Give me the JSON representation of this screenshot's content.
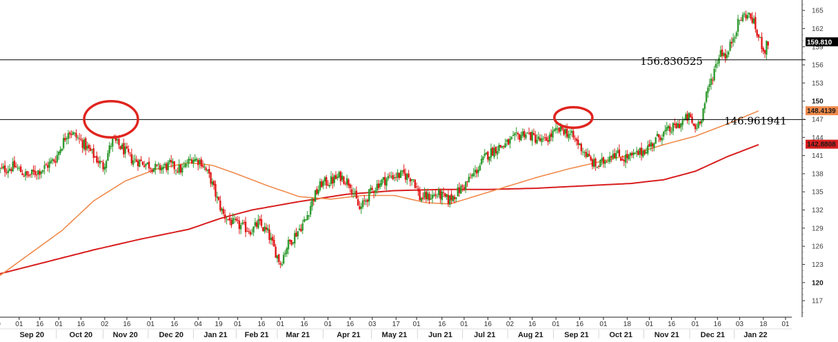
{
  "chart_data": {
    "type": "candlestick",
    "colors": {
      "up": "#2e9a2e",
      "down": "#e01818",
      "ma_short": "#f08a4b",
      "ma_long": "#d81d1d",
      "circle": "#e0241e",
      "hline": "#000000"
    },
    "ylim": [
      114.5,
      166.5
    ],
    "y_ticks": [
      {
        "value": 117,
        "label": "117",
        "bold": false
      },
      {
        "value": 120,
        "label": "120",
        "bold": true
      },
      {
        "value": 123,
        "label": "123",
        "bold": false
      },
      {
        "value": 126,
        "label": "126",
        "bold": false
      },
      {
        "value": 129,
        "label": "129",
        "bold": false
      },
      {
        "value": 132,
        "label": "132",
        "bold": false
      },
      {
        "value": 135,
        "label": "135",
        "bold": false
      },
      {
        "value": 138,
        "label": "138",
        "bold": false
      },
      {
        "value": 141,
        "label": "141",
        "bold": false
      },
      {
        "value": 144,
        "label": "144",
        "bold": false
      },
      {
        "value": 147,
        "label": "147",
        "bold": false
      },
      {
        "value": 150,
        "label": "150",
        "bold": true
      },
      {
        "value": 153,
        "label": "153",
        "bold": false
      },
      {
        "value": 156,
        "label": "156",
        "bold": false
      },
      {
        "value": 159,
        "label": "159",
        "bold": false
      },
      {
        "value": 162,
        "label": "162",
        "bold": false
      },
      {
        "value": 165,
        "label": "165",
        "bold": false
      }
    ],
    "x_domain": [
      0,
      504
    ],
    "date_ticks": [
      {
        "pos": 0,
        "label": "0"
      },
      {
        "pos": 13,
        "label": "01"
      },
      {
        "pos": 26,
        "label": "16"
      },
      {
        "pos": 38,
        "label": "01"
      },
      {
        "pos": 52,
        "label": "16"
      },
      {
        "pos": 67,
        "label": "02"
      },
      {
        "pos": 81,
        "label": "16"
      },
      {
        "pos": 96,
        "label": "01"
      },
      {
        "pos": 111,
        "label": "16"
      },
      {
        "pos": 126,
        "label": "04"
      },
      {
        "pos": 139,
        "label": "19"
      },
      {
        "pos": 151,
        "label": "01"
      },
      {
        "pos": 166,
        "label": "16"
      },
      {
        "pos": 178,
        "label": "01"
      },
      {
        "pos": 193,
        "label": "16"
      },
      {
        "pos": 208,
        "label": "01"
      },
      {
        "pos": 222,
        "label": "16"
      },
      {
        "pos": 236,
        "label": "03"
      },
      {
        "pos": 251,
        "label": "17"
      },
      {
        "pos": 264,
        "label": "01"
      },
      {
        "pos": 280,
        "label": "16"
      },
      {
        "pos": 294,
        "label": "01"
      },
      {
        "pos": 309,
        "label": "16"
      },
      {
        "pos": 323,
        "label": "02"
      },
      {
        "pos": 337,
        "label": "16"
      },
      {
        "pos": 352,
        "label": "01"
      },
      {
        "pos": 367,
        "label": "16"
      },
      {
        "pos": 382,
        "label": "01"
      },
      {
        "pos": 397,
        "label": "18"
      },
      {
        "pos": 411,
        "label": "01"
      },
      {
        "pos": 425,
        "label": "16"
      },
      {
        "pos": 440,
        "label": "01"
      },
      {
        "pos": 454,
        "label": "16"
      },
      {
        "pos": 468,
        "label": "03"
      },
      {
        "pos": 483,
        "label": "18"
      },
      {
        "pos": 497,
        "label": "01"
      }
    ],
    "month_labels": [
      {
        "pos": 21,
        "label": "Sep 20"
      },
      {
        "pos": 52,
        "label": "Oct 20"
      },
      {
        "pos": 80,
        "label": "Nov 20"
      },
      {
        "pos": 109,
        "label": "Dec 20"
      },
      {
        "pos": 137,
        "label": "Jan 21"
      },
      {
        "pos": 163,
        "label": "Feb 21"
      },
      {
        "pos": 189,
        "label": "Mar 21"
      },
      {
        "pos": 221,
        "label": "Apr 21"
      },
      {
        "pos": 250,
        "label": "May 21"
      },
      {
        "pos": 279,
        "label": "Jun 21"
      },
      {
        "pos": 307,
        "label": "Jul 21"
      },
      {
        "pos": 336,
        "label": "Aug 21"
      },
      {
        "pos": 365,
        "label": "Sep 21"
      },
      {
        "pos": 393,
        "label": "Oct 21"
      },
      {
        "pos": 422,
        "label": "Nov 21"
      },
      {
        "pos": 451,
        "label": "Dec 21"
      },
      {
        "pos": 478,
        "label": "Jan 22"
      }
    ],
    "price_anchors": [
      [
        0,
        138.5
      ],
      [
        10,
        139.2
      ],
      [
        18,
        137.6
      ],
      [
        28,
        138.8
      ],
      [
        36,
        140.5
      ],
      [
        44,
        145.2
      ],
      [
        52,
        143.4
      ],
      [
        60,
        141.0
      ],
      [
        66,
        139.2
      ],
      [
        72,
        143.6
      ],
      [
        78,
        142.2
      ],
      [
        84,
        140.4
      ],
      [
        92,
        139.8
      ],
      [
        100,
        138.8
      ],
      [
        108,
        139.4
      ],
      [
        116,
        138.6
      ],
      [
        122,
        140.6
      ],
      [
        128,
        140.0
      ],
      [
        134,
        137.0
      ],
      [
        138,
        133.8
      ],
      [
        142,
        131.2
      ],
      [
        148,
        129.8
      ],
      [
        154,
        129.2
      ],
      [
        160,
        128.6
      ],
      [
        164,
        129.8
      ],
      [
        170,
        128.2
      ],
      [
        174,
        125.6
      ],
      [
        178,
        123.2
      ],
      [
        182,
        126.0
      ],
      [
        188,
        128.2
      ],
      [
        194,
        130.4
      ],
      [
        198,
        133.6
      ],
      [
        204,
        136.4
      ],
      [
        210,
        136.8
      ],
      [
        216,
        137.6
      ],
      [
        222,
        136.4
      ],
      [
        228,
        132.0
      ],
      [
        234,
        134.6
      ],
      [
        240,
        136.4
      ],
      [
        248,
        137.6
      ],
      [
        256,
        137.8
      ],
      [
        262,
        137.2
      ],
      [
        266,
        134.0
      ],
      [
        272,
        134.2
      ],
      [
        278,
        134.6
      ],
      [
        284,
        133.6
      ],
      [
        290,
        135.0
      ],
      [
        296,
        136.6
      ],
      [
        302,
        138.6
      ],
      [
        308,
        141.0
      ],
      [
        314,
        142.2
      ],
      [
        320,
        142.8
      ],
      [
        326,
        143.8
      ],
      [
        332,
        144.8
      ],
      [
        338,
        144.0
      ],
      [
        344,
        143.2
      ],
      [
        350,
        144.6
      ],
      [
        356,
        145.4
      ],
      [
        362,
        144.2
      ],
      [
        366,
        143.0
      ],
      [
        370,
        141.6
      ],
      [
        374,
        140.0
      ],
      [
        378,
        139.2
      ],
      [
        382,
        140.0
      ],
      [
        388,
        141.6
      ],
      [
        394,
        140.6
      ],
      [
        400,
        140.8
      ],
      [
        406,
        141.6
      ],
      [
        412,
        142.8
      ],
      [
        418,
        144.4
      ],
      [
        424,
        145.2
      ],
      [
        430,
        146.2
      ],
      [
        436,
        147.4
      ],
      [
        440,
        145.4
      ],
      [
        444,
        147.6
      ],
      [
        448,
        151.8
      ],
      [
        452,
        155.2
      ],
      [
        456,
        158.4
      ],
      [
        460,
        157.4
      ],
      [
        464,
        160.8
      ],
      [
        468,
        163.4
      ],
      [
        472,
        164.4
      ],
      [
        476,
        163.6
      ],
      [
        480,
        160.4
      ],
      [
        484,
        158.4
      ],
      [
        486,
        159.8
      ]
    ],
    "ma_short": [
      [
        0,
        121.0
      ],
      [
        20,
        124.8
      ],
      [
        40,
        128.6
      ],
      [
        60,
        133.5
      ],
      [
        80,
        136.8
      ],
      [
        100,
        138.8
      ],
      [
        120,
        139.8
      ],
      [
        135,
        139.4
      ],
      [
        150,
        138.0
      ],
      [
        170,
        136.0
      ],
      [
        190,
        134.2
      ],
      [
        210,
        133.8
      ],
      [
        230,
        134.4
      ],
      [
        250,
        134.4
      ],
      [
        270,
        133.2
      ],
      [
        285,
        133.0
      ],
      [
        300,
        134.2
      ],
      [
        320,
        135.8
      ],
      [
        340,
        137.4
      ],
      [
        360,
        138.8
      ],
      [
        380,
        140.0
      ],
      [
        400,
        141.2
      ],
      [
        420,
        142.8
      ],
      [
        440,
        144.2
      ],
      [
        460,
        146.2
      ],
      [
        480,
        148.4
      ]
    ],
    "ma_long": [
      [
        0,
        121.4
      ],
      [
        30,
        123.4
      ],
      [
        60,
        125.4
      ],
      [
        90,
        127.2
      ],
      [
        120,
        128.8
      ],
      [
        140,
        130.6
      ],
      [
        160,
        132.0
      ],
      [
        190,
        133.4
      ],
      [
        220,
        134.6
      ],
      [
        250,
        135.2
      ],
      [
        280,
        135.4
      ],
      [
        310,
        135.4
      ],
      [
        340,
        135.6
      ],
      [
        370,
        136.0
      ],
      [
        400,
        136.4
      ],
      [
        420,
        137.0
      ],
      [
        440,
        138.4
      ],
      [
        460,
        140.8
      ],
      [
        480,
        142.8
      ]
    ],
    "hlines": [
      {
        "value": 156.830525,
        "label": "156.830525",
        "label_pos": 425
      },
      {
        "value": 146.961941,
        "label": "146.961941",
        "label_pos": 478
      }
    ],
    "price_badges": [
      {
        "value": 159.81,
        "label": "159.810",
        "bg": "#000000",
        "fg": "#ffffff"
      },
      {
        "value": 148.4139,
        "label": "148.4139",
        "bg": "#f08a4b",
        "fg": "#1a1a1a"
      },
      {
        "value": 142.8808,
        "label": "142.8808",
        "bg": "#d81d1d",
        "fg": "#1a1a1a"
      }
    ],
    "circle_annotations": [
      {
        "center_pos": 71,
        "center_value": 147.0,
        "rx_units": 17,
        "ry_value": 3.0
      },
      {
        "center_pos": 363,
        "center_value": 147.3,
        "rx_units": 12,
        "ry_value": 1.7
      }
    ]
  }
}
